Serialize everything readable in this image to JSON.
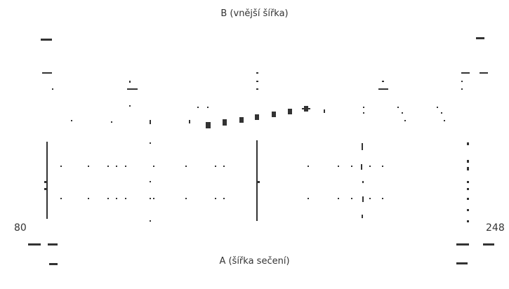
{
  "diagram": {
    "top_label": "B (vnější šířka)",
    "bottom_label": "A (šířka sečení)",
    "min_label": "80",
    "max_label": "248",
    "mark_color": "#333333",
    "background": "#ffffff"
  }
}
